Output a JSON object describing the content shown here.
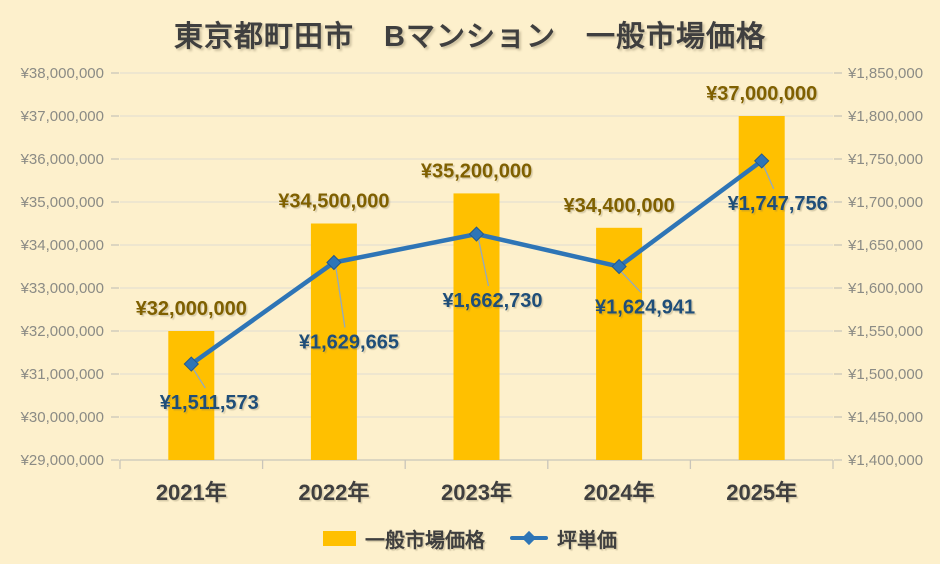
{
  "chart_data": {
    "type": "bar+line",
    "title": "東京都町田市　Bマンション　一般市場価格",
    "categories": [
      "2021年",
      "2022年",
      "2023年",
      "2024年",
      "2025年"
    ],
    "series": [
      {
        "name": "一般市場価格",
        "type": "bar",
        "axis": "left",
        "values": [
          32000000,
          34500000,
          35200000,
          34400000,
          37000000
        ],
        "labels": [
          "¥32,000,000",
          "¥34,500,000",
          "¥35,200,000",
          "¥34,400,000",
          "¥37,000,000"
        ],
        "color": "#FFC000",
        "label_color": "#7F6000"
      },
      {
        "name": "坪単価",
        "type": "line",
        "axis": "right",
        "values": [
          1511573,
          1629665,
          1662730,
          1624941,
          1747756
        ],
        "labels": [
          "¥1,511,573",
          "¥1,629,665",
          "¥1,662,730",
          "¥1,624,941",
          "¥1,747,756"
        ],
        "color": "#2E75B6",
        "label_color": "#1F4E79"
      }
    ],
    "left_axis": {
      "min": 29000000,
      "max": 38000000,
      "step": 1000000,
      "tick_labels": [
        "¥29,000,000",
        "¥30,000,000",
        "¥31,000,000",
        "¥32,000,000",
        "¥33,000,000",
        "¥34,000,000",
        "¥35,000,000",
        "¥36,000,000",
        "¥37,000,000",
        "¥38,000,000"
      ]
    },
    "right_axis": {
      "min": 1400000,
      "max": 1850000,
      "step": 50000,
      "tick_labels": [
        "¥1,400,000",
        "¥1,450,000",
        "¥1,500,000",
        "¥1,550,000",
        "¥1,600,000",
        "¥1,650,000",
        "¥1,700,000",
        "¥1,750,000",
        "¥1,800,000",
        "¥1,850,000"
      ]
    },
    "legend_position": "bottom",
    "grid": true,
    "colors": {
      "background": "#FDF0CC",
      "bar": "#FFC000",
      "bar_label": "#7F6000",
      "line": "#2E75B6",
      "line_label": "#1F4E79",
      "axis_text": "#8B8B85",
      "heading_text": "#3F3F3F",
      "gridline": "#DEDBD2"
    }
  }
}
